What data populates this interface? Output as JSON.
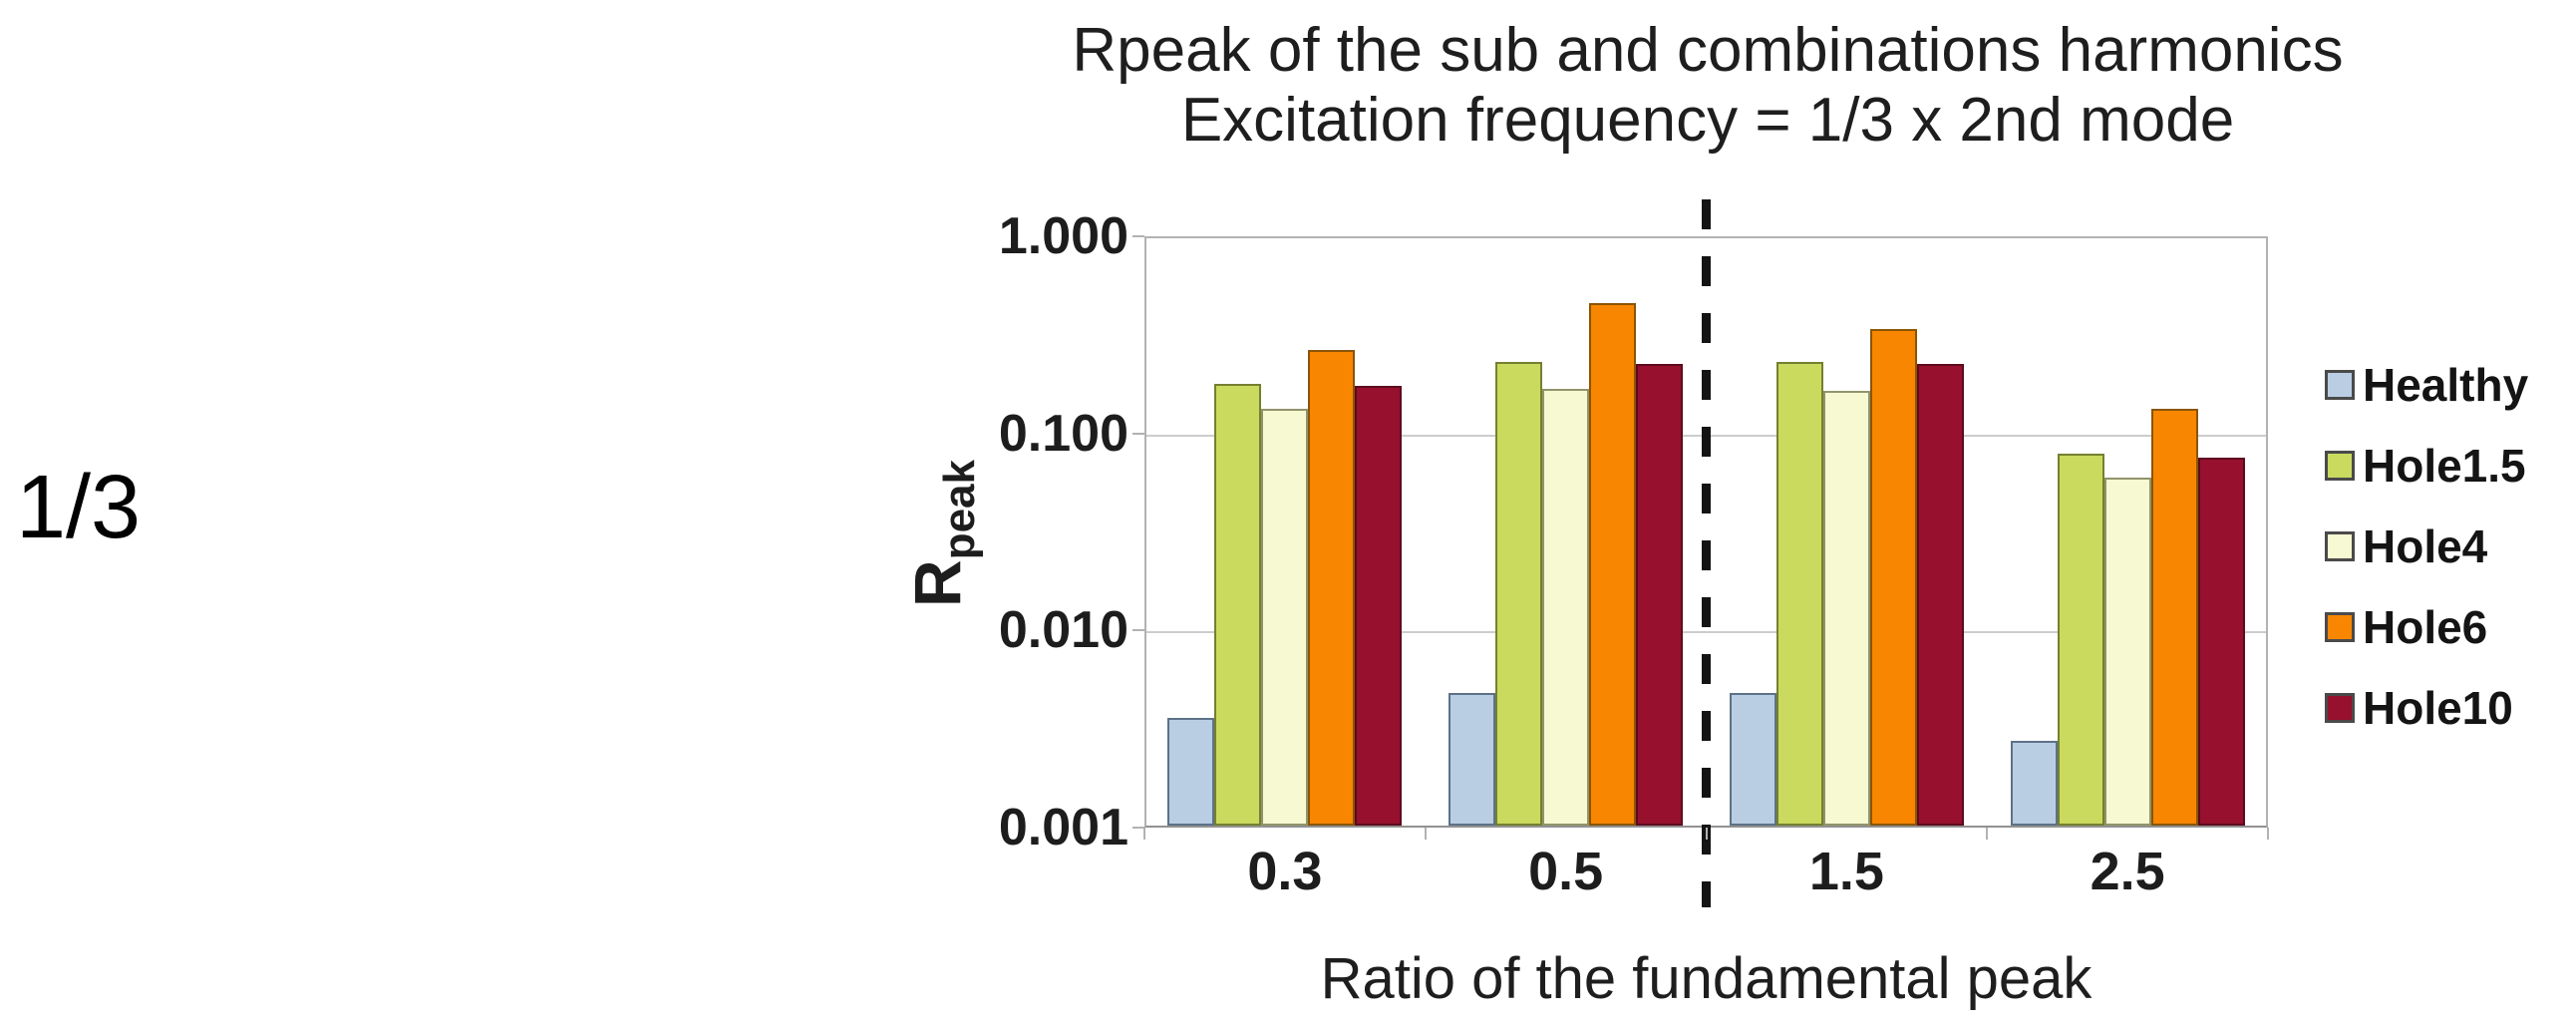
{
  "annotation": {
    "text": "1/3"
  },
  "chart": {
    "title_line1": "Rpeak of the sub and combinations harmonics",
    "title_line2": "Excitation frequency = 1/3 x 2nd mode",
    "x_axis_title": "Ratio of the fundamental peak",
    "y_axis_title_main": "R",
    "y_axis_title_sub": "peak"
  },
  "chart_data": {
    "type": "bar",
    "y_scale": "log",
    "title": "Rpeak of the sub and combinations harmonics",
    "subtitle": "Excitation frequency = 1/3 x 2nd mode",
    "xlabel": "Ratio of the fundamental peak",
    "ylabel": "Rpeak",
    "categories": [
      "0.3",
      "0.5",
      "1.5",
      "2.5"
    ],
    "y_ticks": [
      "1.000",
      "0.100",
      "0.010",
      "0.001"
    ],
    "ylim": [
      0.001,
      1.0
    ],
    "grid": true,
    "legend_position": "right",
    "divider_between_categories": [
      "0.5",
      "1.5"
    ],
    "series": [
      {
        "name": "Healthy",
        "color": "#b9cde3",
        "border": "#5d7288",
        "values": [
          0.0035,
          0.0047,
          0.0047,
          0.0027
        ]
      },
      {
        "name": "Hole1.5",
        "color": "#c9da5f",
        "border": "#75802f",
        "values": [
          0.175,
          0.225,
          0.225,
          0.077
        ]
      },
      {
        "name": "Hole4",
        "color": "#f7f9d2",
        "border": "#91946a",
        "values": [
          0.13,
          0.165,
          0.16,
          0.058
        ]
      },
      {
        "name": "Hole6",
        "color": "#f88600",
        "border": "#8a5505",
        "values": [
          0.26,
          0.45,
          0.33,
          0.13
        ]
      },
      {
        "name": "Hole10",
        "color": "#97102e",
        "border": "#5e0a1e",
        "values": [
          0.17,
          0.22,
          0.22,
          0.074
        ]
      }
    ]
  }
}
